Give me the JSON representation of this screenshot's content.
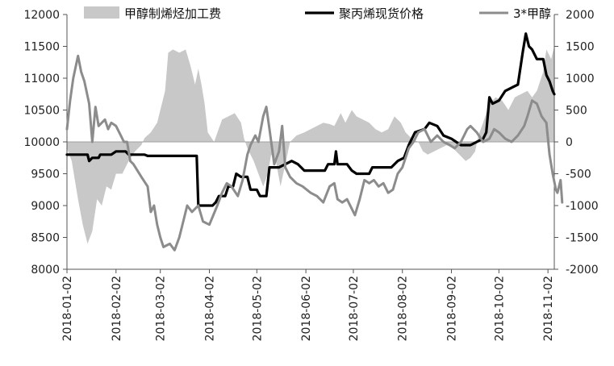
{
  "chart_data": {
    "type": "line",
    "title": "",
    "legend_position": "top",
    "grid": false,
    "x_ticks": [
      "2018-01-02",
      "2018-02-02",
      "2018-03-02",
      "2018-04-02",
      "2018-05-02",
      "2018-06-02",
      "2018-07-02",
      "2018-08-02",
      "2018-09-02",
      "2018-10-02",
      "2018-11-02"
    ],
    "x_range": [
      "2018-01-02",
      "2018-11-06"
    ],
    "y_left": {
      "lim": [
        8000,
        12000
      ],
      "ticks": [
        "8000",
        "8500",
        "9000",
        "9500",
        "10000",
        "10500",
        "11000",
        "11500",
        "12000"
      ]
    },
    "y_right": {
      "lim": [
        -2000,
        2000
      ],
      "ticks": [
        "-2000",
        "-1500",
        "-1000",
        "-500",
        "0",
        "500",
        "1000",
        "1500",
        "2000"
      ]
    },
    "series": [
      {
        "name": "甲醇制烯烃加工费",
        "type": "area",
        "axis": "right",
        "color": "#c8c8c8",
        "points": [
          [
            "2018-01-02",
            -100
          ],
          [
            "2018-01-05",
            -300
          ],
          [
            "2018-01-09",
            -900
          ],
          [
            "2018-01-12",
            -1300
          ],
          [
            "2018-01-15",
            -1600
          ],
          [
            "2018-01-18",
            -1400
          ],
          [
            "2018-01-21",
            -900
          ],
          [
            "2018-01-24",
            -1000
          ],
          [
            "2018-01-27",
            -700
          ],
          [
            "2018-01-30",
            -750
          ],
          [
            "2018-02-02",
            -500
          ],
          [
            "2018-02-06",
            -500
          ],
          [
            "2018-02-10",
            -300
          ],
          [
            "2018-02-14",
            -150
          ],
          [
            "2018-02-18",
            -50
          ],
          [
            "2018-02-20",
            60
          ],
          [
            "2018-02-24",
            150
          ],
          [
            "2018-02-28",
            300
          ],
          [
            "2018-03-02",
            500
          ],
          [
            "2018-03-05",
            800
          ],
          [
            "2018-03-07",
            1400
          ],
          [
            "2018-03-10",
            1450
          ],
          [
            "2018-03-14",
            1400
          ],
          [
            "2018-03-18",
            1450
          ],
          [
            "2018-03-21",
            1200
          ],
          [
            "2018-03-24",
            900
          ],
          [
            "2018-03-26",
            1150
          ],
          [
            "2018-03-28",
            900
          ],
          [
            "2018-03-30",
            600
          ],
          [
            "2018-04-01",
            150
          ],
          [
            "2018-04-05",
            0
          ],
          [
            "2018-04-10",
            350
          ],
          [
            "2018-04-14",
            400
          ],
          [
            "2018-04-18",
            450
          ],
          [
            "2018-04-22",
            300
          ],
          [
            "2018-04-24",
            50
          ],
          [
            "2018-04-26",
            -100
          ],
          [
            "2018-04-30",
            -300
          ],
          [
            "2018-05-03",
            -500
          ],
          [
            "2018-05-06",
            -700
          ],
          [
            "2018-05-09",
            -500
          ],
          [
            "2018-05-11",
            -200
          ],
          [
            "2018-05-14",
            -300
          ],
          [
            "2018-05-17",
            -700
          ],
          [
            "2018-05-20",
            -350
          ],
          [
            "2018-05-23",
            0
          ],
          [
            "2018-05-27",
            100
          ],
          [
            "2018-06-01",
            150
          ],
          [
            "2018-06-05",
            200
          ],
          [
            "2018-06-09",
            250
          ],
          [
            "2018-06-13",
            300
          ],
          [
            "2018-06-17",
            280
          ],
          [
            "2018-06-20",
            250
          ],
          [
            "2018-06-24",
            450
          ],
          [
            "2018-06-27",
            300
          ],
          [
            "2018-07-01",
            500
          ],
          [
            "2018-07-04",
            400
          ],
          [
            "2018-07-08",
            350
          ],
          [
            "2018-07-12",
            300
          ],
          [
            "2018-07-16",
            200
          ],
          [
            "2018-07-20",
            150
          ],
          [
            "2018-07-24",
            200
          ],
          [
            "2018-07-28",
            400
          ],
          [
            "2018-08-01",
            300
          ],
          [
            "2018-08-04",
            150
          ],
          [
            "2018-08-08",
            50
          ],
          [
            "2018-08-12",
            0
          ],
          [
            "2018-08-15",
            -150
          ],
          [
            "2018-08-18",
            -200
          ],
          [
            "2018-08-22",
            -150
          ],
          [
            "2018-08-26",
            -100
          ],
          [
            "2018-08-30",
            -50
          ],
          [
            "2018-09-03",
            -100
          ],
          [
            "2018-09-07",
            -200
          ],
          [
            "2018-09-11",
            -300
          ],
          [
            "2018-09-14",
            -250
          ],
          [
            "2018-09-17",
            -150
          ],
          [
            "2018-09-19",
            100
          ],
          [
            "2018-09-22",
            300
          ],
          [
            "2018-09-26",
            600
          ],
          [
            "2018-09-30",
            700
          ],
          [
            "2018-10-04",
            650
          ],
          [
            "2018-10-08",
            500
          ],
          [
            "2018-10-12",
            700
          ],
          [
            "2018-10-16",
            750
          ],
          [
            "2018-10-20",
            800
          ],
          [
            "2018-10-23",
            700
          ],
          [
            "2018-10-26",
            800
          ],
          [
            "2018-10-30",
            1100
          ],
          [
            "2018-11-01",
            1450
          ],
          [
            "2018-11-04",
            1300
          ],
          [
            "2018-11-06",
            1500
          ]
        ]
      },
      {
        "name": "聚丙烯现货价格",
        "type": "line",
        "axis": "left",
        "color": "#000000",
        "points": [
          [
            "2018-01-02",
            9800
          ],
          [
            "2018-01-15",
            9800
          ],
          [
            "2018-01-16",
            9700
          ],
          [
            "2018-01-18",
            9750
          ],
          [
            "2018-01-22",
            9750
          ],
          [
            "2018-01-23",
            9800
          ],
          [
            "2018-01-30",
            9800
          ],
          [
            "2018-02-02",
            9850
          ],
          [
            "2018-02-08",
            9850
          ],
          [
            "2018-02-10",
            9800
          ],
          [
            "2018-02-20",
            9800
          ],
          [
            "2018-02-22",
            9780
          ],
          [
            "2018-03-25",
            9780
          ],
          [
            "2018-03-26",
            9000
          ],
          [
            "2018-04-04",
            9000
          ],
          [
            "2018-04-06",
            9050
          ],
          [
            "2018-04-08",
            9150
          ],
          [
            "2018-04-12",
            9150
          ],
          [
            "2018-04-14",
            9300
          ],
          [
            "2018-04-17",
            9300
          ],
          [
            "2018-04-19",
            9500
          ],
          [
            "2018-04-22",
            9450
          ],
          [
            "2018-04-26",
            9450
          ],
          [
            "2018-04-28",
            9250
          ],
          [
            "2018-05-02",
            9250
          ],
          [
            "2018-05-04",
            9150
          ],
          [
            "2018-05-08",
            9150
          ],
          [
            "2018-05-10",
            9600
          ],
          [
            "2018-05-16",
            9600
          ],
          [
            "2018-05-20",
            9650
          ],
          [
            "2018-05-24",
            9700
          ],
          [
            "2018-05-28",
            9650
          ],
          [
            "2018-06-01",
            9550
          ],
          [
            "2018-06-14",
            9550
          ],
          [
            "2018-06-16",
            9650
          ],
          [
            "2018-06-20",
            9650
          ],
          [
            "2018-06-21",
            9850
          ],
          [
            "2018-06-22",
            9650
          ],
          [
            "2018-06-28",
            9650
          ],
          [
            "2018-07-01",
            9550
          ],
          [
            "2018-07-04",
            9500
          ],
          [
            "2018-07-12",
            9500
          ],
          [
            "2018-07-14",
            9600
          ],
          [
            "2018-07-26",
            9600
          ],
          [
            "2018-07-30",
            9700
          ],
          [
            "2018-08-03",
            9750
          ],
          [
            "2018-08-06",
            9950
          ],
          [
            "2018-08-10",
            10150
          ],
          [
            "2018-08-16",
            10200
          ],
          [
            "2018-08-19",
            10300
          ],
          [
            "2018-08-24",
            10250
          ],
          [
            "2018-08-28",
            10100
          ],
          [
            "2018-09-02",
            10050
          ],
          [
            "2018-09-08",
            9950
          ],
          [
            "2018-09-14",
            9950
          ],
          [
            "2018-09-18",
            10000
          ],
          [
            "2018-09-22",
            10050
          ],
          [
            "2018-09-24",
            10150
          ],
          [
            "2018-09-26",
            10700
          ],
          [
            "2018-09-28",
            10600
          ],
          [
            "2018-10-02",
            10650
          ],
          [
            "2018-10-06",
            10800
          ],
          [
            "2018-10-10",
            10850
          ],
          [
            "2018-10-14",
            10900
          ],
          [
            "2018-10-17",
            11400
          ],
          [
            "2018-10-19",
            11700
          ],
          [
            "2018-10-21",
            11500
          ],
          [
            "2018-10-23",
            11450
          ],
          [
            "2018-10-26",
            11300
          ],
          [
            "2018-10-30",
            11300
          ],
          [
            "2018-11-01",
            11050
          ],
          [
            "2018-11-03",
            10950
          ],
          [
            "2018-11-05",
            10800
          ],
          [
            "2018-11-06",
            10750
          ]
        ]
      },
      {
        "name": "3*甲醇",
        "type": "line",
        "axis": "left",
        "color": "#8c8c8c",
        "points": [
          [
            "2018-01-02",
            10200
          ],
          [
            "2018-01-04",
            10650
          ],
          [
            "2018-01-06",
            11000
          ],
          [
            "2018-01-09",
            11350
          ],
          [
            "2018-01-11",
            11100
          ],
          [
            "2018-01-13",
            10950
          ],
          [
            "2018-01-16",
            10600
          ],
          [
            "2018-01-18",
            10000
          ],
          [
            "2018-01-20",
            10550
          ],
          [
            "2018-01-22",
            10250
          ],
          [
            "2018-01-26",
            10350
          ],
          [
            "2018-01-28",
            10200
          ],
          [
            "2018-01-30",
            10300
          ],
          [
            "2018-02-02",
            10250
          ],
          [
            "2018-02-05",
            10100
          ],
          [
            "2018-02-07",
            10000
          ],
          [
            "2018-02-09",
            10000
          ],
          [
            "2018-02-11",
            9700
          ],
          [
            "2018-02-13",
            9650
          ],
          [
            "2018-02-18",
            9450
          ],
          [
            "2018-02-22",
            9300
          ],
          [
            "2018-02-24",
            8900
          ],
          [
            "2018-02-26",
            9000
          ],
          [
            "2018-02-28",
            8700
          ],
          [
            "2018-03-02",
            8500
          ],
          [
            "2018-03-04",
            8350
          ],
          [
            "2018-03-08",
            8400
          ],
          [
            "2018-03-11",
            8300
          ],
          [
            "2018-03-14",
            8500
          ],
          [
            "2018-03-17",
            8800
          ],
          [
            "2018-03-19",
            9000
          ],
          [
            "2018-03-22",
            8900
          ],
          [
            "2018-03-26",
            9000
          ],
          [
            "2018-03-29",
            8750
          ],
          [
            "2018-04-02",
            8700
          ],
          [
            "2018-04-07",
            9000
          ],
          [
            "2018-04-10",
            9200
          ],
          [
            "2018-04-13",
            9350
          ],
          [
            "2018-04-16",
            9300
          ],
          [
            "2018-04-20",
            9150
          ],
          [
            "2018-04-23",
            9400
          ],
          [
            "2018-04-26",
            9800
          ],
          [
            "2018-04-28",
            9950
          ],
          [
            "2018-05-01",
            10100
          ],
          [
            "2018-05-03",
            10000
          ],
          [
            "2018-05-06",
            10400
          ],
          [
            "2018-05-08",
            10550
          ],
          [
            "2018-05-10",
            10200
          ],
          [
            "2018-05-13",
            9650
          ],
          [
            "2018-05-16",
            9850
          ],
          [
            "2018-05-18",
            10250
          ],
          [
            "2018-05-20",
            9600
          ],
          [
            "2018-05-23",
            9450
          ],
          [
            "2018-05-27",
            9350
          ],
          [
            "2018-05-31",
            9300
          ],
          [
            "2018-06-05",
            9200
          ],
          [
            "2018-06-09",
            9150
          ],
          [
            "2018-06-13",
            9050
          ],
          [
            "2018-06-17",
            9300
          ],
          [
            "2018-06-20",
            9350
          ],
          [
            "2018-06-22",
            9100
          ],
          [
            "2018-06-25",
            9050
          ],
          [
            "2018-06-28",
            9100
          ],
          [
            "2018-07-01",
            8950
          ],
          [
            "2018-07-03",
            8850
          ],
          [
            "2018-07-06",
            9100
          ],
          [
            "2018-07-09",
            9400
          ],
          [
            "2018-07-12",
            9350
          ],
          [
            "2018-07-15",
            9400
          ],
          [
            "2018-07-18",
            9300
          ],
          [
            "2018-07-21",
            9350
          ],
          [
            "2018-07-24",
            9200
          ],
          [
            "2018-07-27",
            9250
          ],
          [
            "2018-07-30",
            9500
          ],
          [
            "2018-08-02",
            9600
          ],
          [
            "2018-08-06",
            9900
          ],
          [
            "2018-08-09",
            10000
          ],
          [
            "2018-08-12",
            10150
          ],
          [
            "2018-08-16",
            10200
          ],
          [
            "2018-08-20",
            10000
          ],
          [
            "2018-08-24",
            10100
          ],
          [
            "2018-08-28",
            10000
          ],
          [
            "2018-09-01",
            9950
          ],
          [
            "2018-09-04",
            9900
          ],
          [
            "2018-09-08",
            10000
          ],
          [
            "2018-09-12",
            10200
          ],
          [
            "2018-09-14",
            10250
          ],
          [
            "2018-09-18",
            10150
          ],
          [
            "2018-09-22",
            10000
          ],
          [
            "2018-09-26",
            10050
          ],
          [
            "2018-09-29",
            10200
          ],
          [
            "2018-10-02",
            10150
          ],
          [
            "2018-10-06",
            10050
          ],
          [
            "2018-10-10",
            10000
          ],
          [
            "2018-10-14",
            10100
          ],
          [
            "2018-10-18",
            10250
          ],
          [
            "2018-10-20",
            10400
          ],
          [
            "2018-10-23",
            10650
          ],
          [
            "2018-10-26",
            10600
          ],
          [
            "2018-10-29",
            10400
          ],
          [
            "2018-11-01",
            10300
          ],
          [
            "2018-11-03",
            9800
          ],
          [
            "2018-11-05",
            9500
          ],
          [
            "2018-11-07",
            9250
          ],
          [
            "2018-11-08",
            9200
          ],
          [
            "2018-11-10",
            9400
          ],
          [
            "2018-11-11",
            9050
          ]
        ]
      }
    ]
  }
}
